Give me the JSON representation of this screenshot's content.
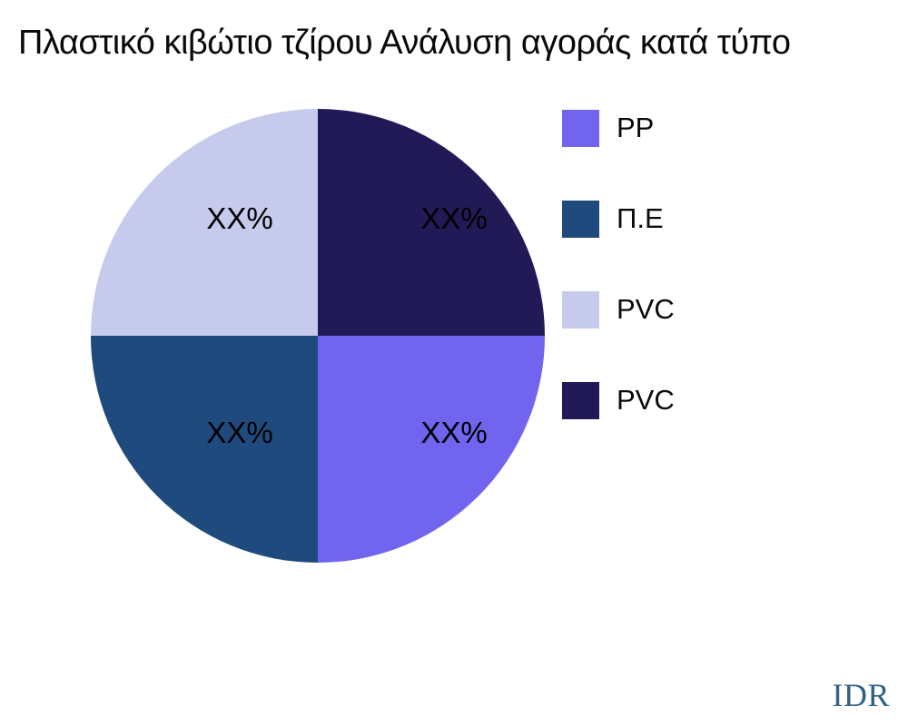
{
  "chart_data": {
    "type": "pie",
    "title": "Πλαστικό κιβώτιο τζίρου Ανάλυση αγοράς κατά τύπο",
    "slices": [
      {
        "label": "PP",
        "value": 25,
        "value_label": "XX%",
        "color": "#7164ee"
      },
      {
        "label": "Π.Ε",
        "value": 25,
        "value_label": "XX%",
        "color": "#1f4a7d"
      },
      {
        "label": "PVC",
        "value": 25,
        "value_label": "XX%",
        "color": "#c6caed"
      },
      {
        "label": "PVC",
        "value": 25,
        "value_label": "XX%",
        "color": "#211a56"
      }
    ],
    "conic_draw_order": [
      3,
      0,
      1,
      2
    ],
    "start_angle_deg": 0,
    "direction": "clockwise",
    "legend_position": "right",
    "legend_entries": [
      "PP",
      "Π.Ε",
      "PVC",
      "PVC"
    ]
  },
  "branding": {
    "watermark": "IDR",
    "watermark_color": "#2e6088"
  },
  "colors": {
    "background": "#ffffff",
    "title_text": "#0a0a0a",
    "slice_label_text": "#000000"
  }
}
